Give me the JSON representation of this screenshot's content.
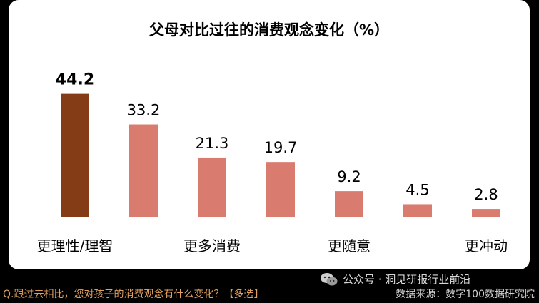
{
  "colors": {
    "highlight_bar": "#843c16",
    "bar": "#d97b6e",
    "background": "#000000",
    "card": "#ffffff",
    "question_text": "#e0a060",
    "watermark_text": "#d8d8d8"
  },
  "chart_data": {
    "type": "bar",
    "title": "父母对比过往的消费观念变化（%）",
    "categories": [
      "更理性/理智",
      "",
      "更多消费",
      "",
      "更随意",
      "",
      "更冲动"
    ],
    "values": [
      44.2,
      33.2,
      21.3,
      19.7,
      9.2,
      4.5,
      2.8
    ],
    "value_labels": [
      "44.2",
      "33.2",
      "21.3",
      "19.7",
      "9.2",
      "4.5",
      "2.8"
    ],
    "highlight_index": 0,
    "ylim": [
      0,
      50
    ],
    "grid": false,
    "legend": "none"
  },
  "footer": {
    "question": "Q.跟过去相比，您对孩子的消费观念有什么变化？【多选】",
    "watermark": "公众号 · 洞见研报行业前沿",
    "watermark_icon": "wechat-icon",
    "source": "数据来源：数字100数据研究院"
  }
}
